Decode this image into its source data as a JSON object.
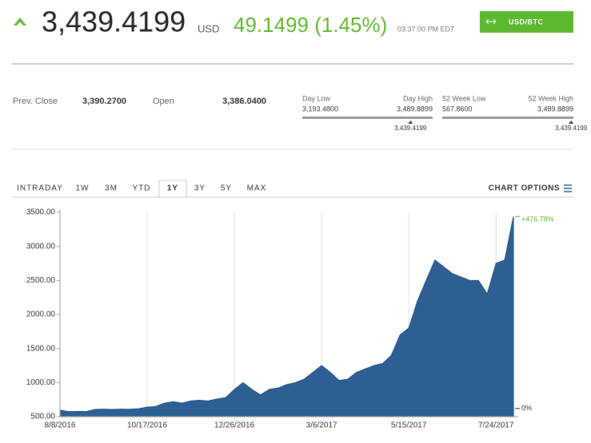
{
  "quote": {
    "price": "3,439.4199",
    "currency": "USD",
    "change": "49.1499 (1.45%)",
    "time": "03:37:00 PM EDT",
    "button": "USD/BTC"
  },
  "stats": {
    "prev_close_label": "Prev. Close",
    "prev_close": "3,390.2700",
    "open_label": "Open",
    "open": "3,386.0400"
  },
  "ranges": [
    {
      "low_label": "Day Low",
      "high_label": "Day High",
      "low": "3,193.4800",
      "high": "3,489.8899",
      "current": "3,439.4199"
    },
    {
      "low_label": "52 Week Low",
      "high_label": "52 Week High",
      "low": "567.8600",
      "high": "3,489.8899",
      "current": "3,439.4199"
    }
  ],
  "tabs": [
    "INTRADAY",
    "1W",
    "3M",
    "YTD",
    "1Y",
    "3Y",
    "5Y",
    "MAX"
  ],
  "selected_tab": 4,
  "chart_options": "CHART OPTIONS",
  "chart_data": {
    "type": "area",
    "color": "#2d5f95",
    "categories": [
      "8/8/2016",
      null,
      null,
      null,
      null,
      null,
      null,
      null,
      null,
      null,
      "10/17/2016",
      null,
      null,
      null,
      null,
      null,
      null,
      null,
      null,
      null,
      "12/26/2016",
      null,
      null,
      null,
      null,
      null,
      null,
      null,
      null,
      null,
      "3/6/2017",
      null,
      null,
      null,
      null,
      null,
      null,
      null,
      null,
      null,
      "5/15/2017",
      null,
      null,
      null,
      null,
      null,
      null,
      null,
      null,
      null,
      "7/24/2017",
      null,
      null
    ],
    "values": [
      596,
      575,
      578,
      575,
      605,
      610,
      605,
      610,
      608,
      615,
      640,
      650,
      700,
      720,
      700,
      730,
      740,
      730,
      760,
      780,
      900,
      1000,
      900,
      820,
      900,
      920,
      970,
      1000,
      1050,
      1150,
      1250,
      1150,
      1030,
      1050,
      1150,
      1200,
      1250,
      1280,
      1400,
      1700,
      1800,
      2200,
      2500,
      2800,
      2700,
      2600,
      2550,
      2500,
      2500,
      2300,
      2750,
      2800,
      3439
    ],
    "ylim": [
      500,
      3500
    ],
    "yticks": [
      {
        "value": 500,
        "label": "500.00"
      },
      {
        "value": 1000,
        "label": "1000.00"
      },
      {
        "value": 1500,
        "label": "1500.00"
      },
      {
        "value": 2000,
        "label": "2000.00"
      },
      {
        "value": 2500,
        "label": "2500.00"
      },
      {
        "value": 3000,
        "label": "3000.00"
      },
      {
        "value": 3500,
        "label": "3500.00"
      }
    ],
    "start_label": "0%",
    "end_label": "+476.78%"
  }
}
